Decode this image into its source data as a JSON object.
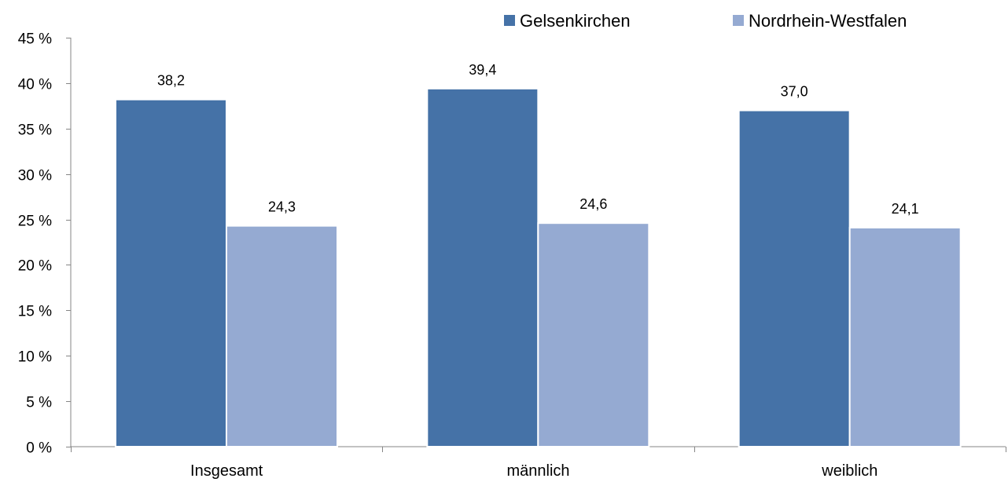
{
  "chart_data": {
    "type": "bar",
    "categories": [
      "Insgesamt",
      "männlich",
      "weiblich"
    ],
    "series": [
      {
        "name": "Gelsenkirchen",
        "values": [
          38.2,
          39.4,
          37.0
        ],
        "labels": [
          "38,2",
          "39,4",
          "37,0"
        ],
        "color": "#4572a7"
      },
      {
        "name": "Nordrhein-Westfalen",
        "values": [
          24.3,
          24.6,
          24.1
        ],
        "labels": [
          "24,3",
          "24,6",
          "24,1"
        ],
        "color": "#95aad2"
      }
    ],
    "ylim": [
      0,
      45
    ],
    "yticks": [
      0,
      5,
      10,
      15,
      20,
      25,
      30,
      35,
      40,
      45
    ],
    "ytick_labels": [
      "0 %",
      "5 %",
      "10 %",
      "15 %",
      "20 %",
      "25 %",
      "30 %",
      "35 %",
      "40 %",
      "45 %"
    ],
    "title": "",
    "xlabel": "",
    "ylabel": "",
    "legend_position": "top-right",
    "grid": false
  }
}
